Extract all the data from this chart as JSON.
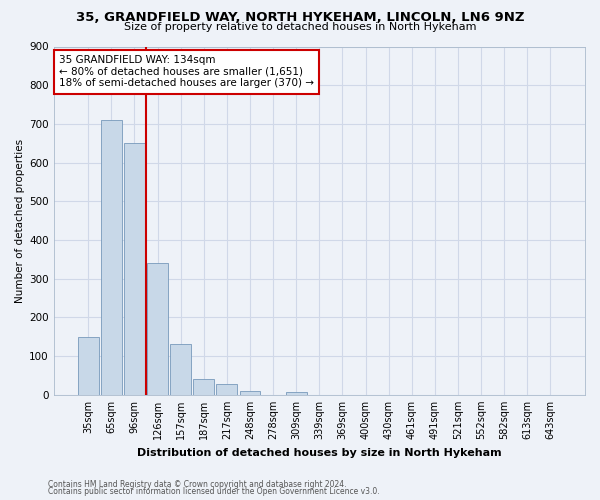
{
  "title1": "35, GRANDFIELD WAY, NORTH HYKEHAM, LINCOLN, LN6 9NZ",
  "title2": "Size of property relative to detached houses in North Hykeham",
  "xlabel": "Distribution of detached houses by size in North Hykeham",
  "ylabel": "Number of detached properties",
  "footer1": "Contains HM Land Registry data © Crown copyright and database right 2024.",
  "footer2": "Contains public sector information licensed under the Open Government Licence v3.0.",
  "bar_labels": [
    "35sqm",
    "65sqm",
    "96sqm",
    "126sqm",
    "157sqm",
    "187sqm",
    "217sqm",
    "248sqm",
    "278sqm",
    "309sqm",
    "339sqm",
    "369sqm",
    "400sqm",
    "430sqm",
    "461sqm",
    "491sqm",
    "521sqm",
    "552sqm",
    "582sqm",
    "613sqm",
    "643sqm"
  ],
  "bar_values": [
    150,
    710,
    650,
    340,
    130,
    40,
    27,
    10,
    0,
    8,
    0,
    0,
    0,
    0,
    0,
    0,
    0,
    0,
    0,
    0,
    0
  ],
  "bar_color": "#c8d8e8",
  "bar_edge_color": "#7799bb",
  "grid_color": "#d0d8e8",
  "background_color": "#eef2f8",
  "vline_color": "#cc0000",
  "annotation_text": "35 GRANDFIELD WAY: 134sqm\n← 80% of detached houses are smaller (1,651)\n18% of semi-detached houses are larger (370) →",
  "annotation_box_color": "#ffffff",
  "annotation_box_edge": "#cc0000",
  "ylim": [
    0,
    900
  ],
  "yticks": [
    0,
    100,
    200,
    300,
    400,
    500,
    600,
    700,
    800,
    900
  ],
  "vline_pos": 2.5
}
